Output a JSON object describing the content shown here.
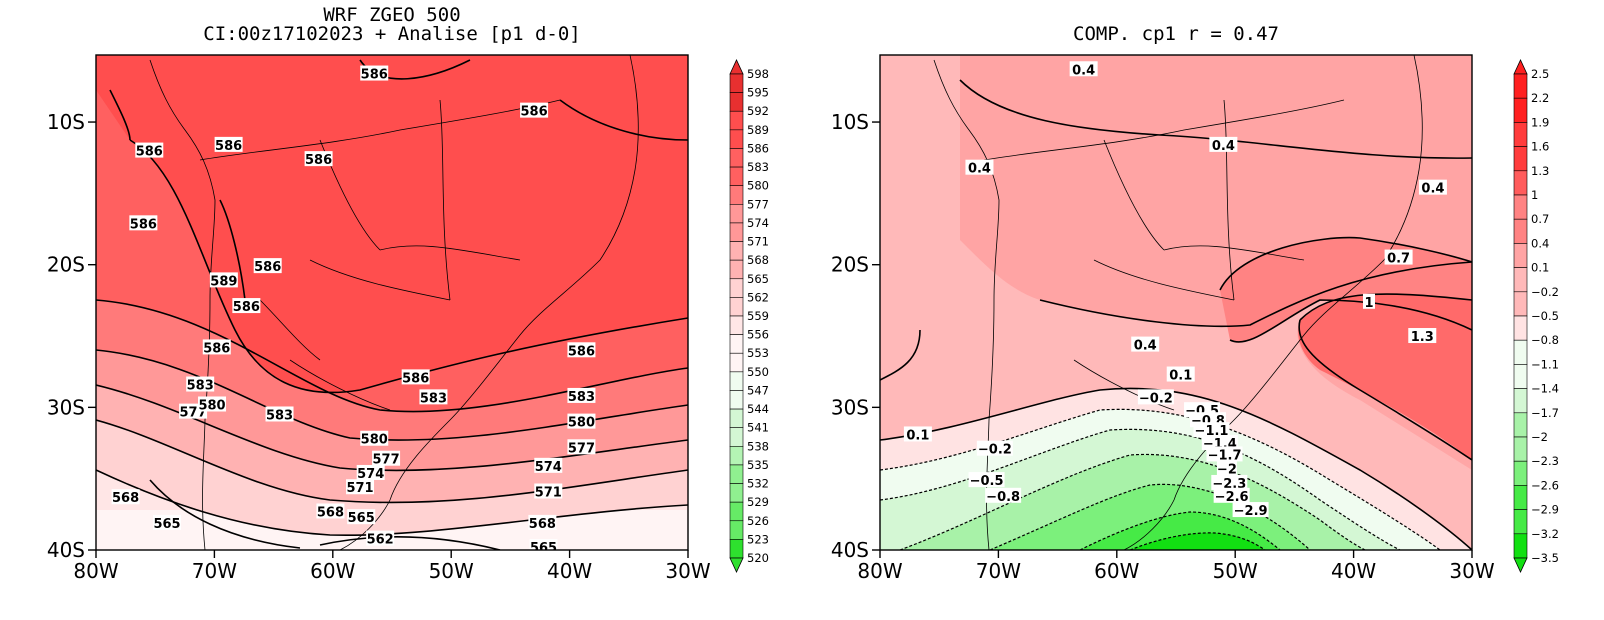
{
  "left": {
    "title_line1": "WRF ZGEO 500",
    "title_line2": "CI:00z17102023 + Analise  [p1 d-0]",
    "lat_ticks": [
      "10S",
      "20S",
      "30S",
      "40S"
    ],
    "lon_ticks": [
      "80W",
      "70W",
      "60W",
      "50W",
      "40W",
      "30W"
    ],
    "colorbar_levels": [
      "598",
      "595",
      "592",
      "589",
      "586",
      "583",
      "580",
      "577",
      "574",
      "571",
      "568",
      "565",
      "562",
      "559",
      "556",
      "553",
      "550",
      "547",
      "544",
      "541",
      "538",
      "535",
      "532",
      "529",
      "526",
      "523",
      "520"
    ],
    "contour_labels": [
      {
        "text": "586",
        "lon": -56.5,
        "lat": -6.6
      },
      {
        "text": "586",
        "lon": -43.0,
        "lat": -9.2
      },
      {
        "text": "586",
        "lon": -75.5,
        "lat": -12.0
      },
      {
        "text": "586",
        "lon": -68.8,
        "lat": -11.6
      },
      {
        "text": "586",
        "lon": -61.2,
        "lat": -12.6
      },
      {
        "text": "586",
        "lon": -76.0,
        "lat": -17.1
      },
      {
        "text": "589",
        "lon": -69.2,
        "lat": -21.1
      },
      {
        "text": "586",
        "lon": -65.5,
        "lat": -20.1
      },
      {
        "text": "586",
        "lon": -67.3,
        "lat": -22.9
      },
      {
        "text": "586",
        "lon": -69.8,
        "lat": -25.8
      },
      {
        "text": "583",
        "lon": -71.2,
        "lat": -28.4
      },
      {
        "text": "577",
        "lon": -71.8,
        "lat": -30.3
      },
      {
        "text": "580",
        "lon": -70.2,
        "lat": -29.8
      },
      {
        "text": "586",
        "lon": -53.0,
        "lat": -27.9
      },
      {
        "text": "583",
        "lon": -51.5,
        "lat": -29.3
      },
      {
        "text": "583",
        "lon": -64.5,
        "lat": -30.5
      },
      {
        "text": "586",
        "lon": -39.0,
        "lat": -26.0
      },
      {
        "text": "583",
        "lon": -39.0,
        "lat": -29.2
      },
      {
        "text": "580",
        "lon": -39.0,
        "lat": -31.0
      },
      {
        "text": "577",
        "lon": -39.0,
        "lat": -32.8
      },
      {
        "text": "580",
        "lon": -56.5,
        "lat": -32.2
      },
      {
        "text": "577",
        "lon": -55.5,
        "lat": -33.6
      },
      {
        "text": "574",
        "lon": -56.8,
        "lat": -34.6
      },
      {
        "text": "571",
        "lon": -57.7,
        "lat": -35.6
      },
      {
        "text": "574",
        "lon": -41.8,
        "lat": -34.1
      },
      {
        "text": "571",
        "lon": -41.8,
        "lat": -35.9
      },
      {
        "text": "568",
        "lon": -77.5,
        "lat": -36.3
      },
      {
        "text": "568",
        "lon": -60.2,
        "lat": -37.3
      },
      {
        "text": "565",
        "lon": -57.6,
        "lat": -37.7
      },
      {
        "text": "565",
        "lon": -74.0,
        "lat": -38.1
      },
      {
        "text": "568",
        "lon": -42.3,
        "lat": -38.1
      },
      {
        "text": "562",
        "lon": -56.0,
        "lat": -39.2
      },
      {
        "text": "565",
        "lon": -42.2,
        "lat": -39.8
      }
    ]
  },
  "right": {
    "title": "COMP. cp1  r =  0.47",
    "lat_ticks": [
      "10S",
      "20S",
      "30S",
      "40S"
    ],
    "lon_ticks": [
      "80W",
      "70W",
      "60W",
      "50W",
      "40W",
      "30W"
    ],
    "colorbar_levels": [
      "2.5",
      "2.2",
      "1.9",
      "1.6",
      "1.3",
      "1",
      "0.7",
      "0.4",
      "0.1",
      "−0.2",
      "−0.5",
      "−0.8",
      "−1.1",
      "−1.4",
      "−1.7",
      "−2",
      "−2.3",
      "−2.6",
      "−2.9",
      "−3.2",
      "−3.5"
    ],
    "contour_labels": [
      {
        "text": "0.4",
        "lon": -62.8,
        "lat": -6.3
      },
      {
        "text": "0.4",
        "lon": -51.0,
        "lat": -11.6
      },
      {
        "text": "0.4",
        "lon": -71.6,
        "lat": -13.2
      },
      {
        "text": "0.4",
        "lon": -33.3,
        "lat": -14.6
      },
      {
        "text": "0.7",
        "lon": -36.2,
        "lat": -19.5
      },
      {
        "text": "1",
        "lon": -38.7,
        "lat": -22.6
      },
      {
        "text": "1.3",
        "lon": -34.2,
        "lat": -25.0
      },
      {
        "text": "0.4",
        "lon": -57.6,
        "lat": -25.6
      },
      {
        "text": "0.1",
        "lon": -54.6,
        "lat": -27.7
      },
      {
        "text": "−0.2",
        "lon": -56.7,
        "lat": -29.3
      },
      {
        "text": "0.1",
        "lon": -76.8,
        "lat": -31.9
      },
      {
        "text": "−0.2",
        "lon": -70.3,
        "lat": -32.9
      },
      {
        "text": "−0.5",
        "lon": -52.8,
        "lat": -30.2
      },
      {
        "text": "−0.8",
        "lon": -52.3,
        "lat": -30.9
      },
      {
        "text": "−1.1",
        "lon": -52.0,
        "lat": -31.6
      },
      {
        "text": "−1.4",
        "lon": -51.3,
        "lat": -32.5
      },
      {
        "text": "−1.7",
        "lon": -50.9,
        "lat": -33.3
      },
      {
        "text": "−2",
        "lon": -50.7,
        "lat": -34.3
      },
      {
        "text": "−2.3",
        "lon": -50.5,
        "lat": -35.3
      },
      {
        "text": "−2.6",
        "lon": -50.3,
        "lat": -36.2
      },
      {
        "text": "−2.9",
        "lon": -48.7,
        "lat": -37.2
      },
      {
        "text": "−0.5",
        "lon": -71.0,
        "lat": -35.1
      },
      {
        "text": "−0.8",
        "lon": -69.6,
        "lat": -36.2
      }
    ]
  },
  "colors": {
    "left_fill": [
      "#e83030",
      "#ff4e4e",
      "#ff6060",
      "#ff7a7a",
      "#ff9898",
      "#ffb2b2",
      "#ffd2d2",
      "#ffe6e6",
      "#fff4f4"
    ],
    "right_fill": [
      "#ff5c5c",
      "#ff8383",
      "#ffa4a4",
      "#ffb9b9",
      "#ffe3e3",
      "#f0fcf0",
      "#d4f7d4",
      "#a8f2a8",
      "#7cf07c",
      "#46ea46",
      "#12e012"
    ]
  }
}
